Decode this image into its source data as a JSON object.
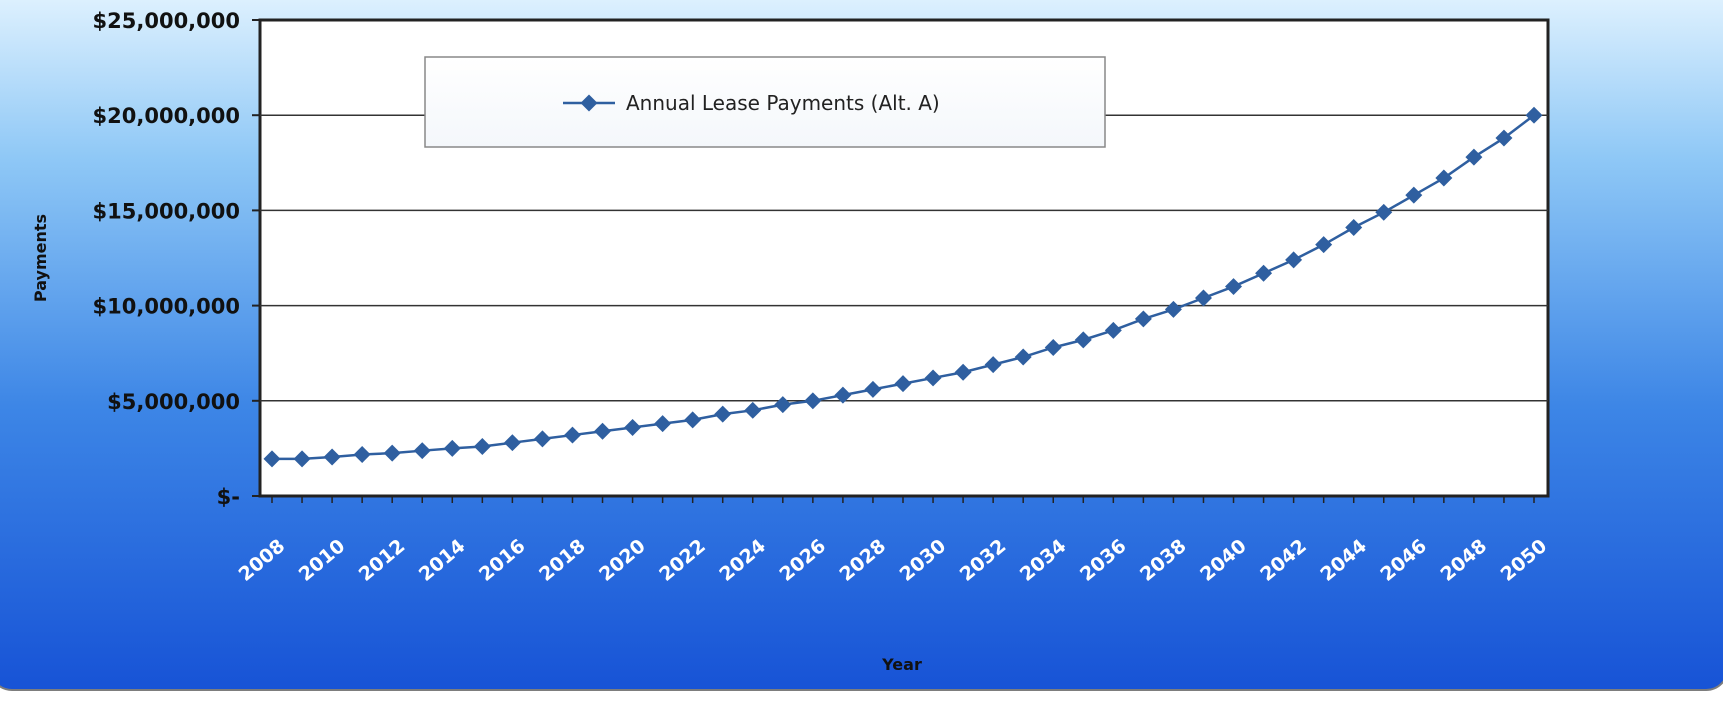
{
  "chart_data": {
    "type": "line",
    "title": "",
    "xlabel": "Year",
    "ylabel": "Payments",
    "x": [
      2008,
      2009,
      2010,
      2011,
      2012,
      2013,
      2014,
      2015,
      2016,
      2017,
      2018,
      2019,
      2020,
      2021,
      2022,
      2023,
      2024,
      2025,
      2026,
      2027,
      2028,
      2029,
      2030,
      2031,
      2032,
      2033,
      2034,
      2035,
      2036,
      2037,
      2038,
      2039,
      2040,
      2041,
      2042,
      2043,
      2044,
      2045,
      2046,
      2047,
      2048,
      2049,
      2050
    ],
    "x_tick_labels": [
      "2008",
      "2010",
      "2012",
      "2014",
      "2016",
      "2018",
      "2020",
      "2022",
      "2024",
      "2026",
      "2028",
      "2030",
      "2032",
      "2034",
      "2036",
      "2038",
      "2040",
      "2042",
      "2044",
      "2046",
      "2048",
      "2050"
    ],
    "ylim": [
      0,
      25000000
    ],
    "y_ticks": [
      0,
      5000000,
      10000000,
      15000000,
      20000000,
      25000000
    ],
    "y_tick_labels": [
      "$-",
      "$5,000,000",
      "$10,000,000",
      "$15,000,000",
      "$20,000,000",
      "$25,000,000"
    ],
    "grid": true,
    "legend_position": "top-center",
    "series": [
      {
        "name": "Annual Lease Payments (Alt. A)",
        "color": "#2f5fa0",
        "values": [
          1950000,
          1950000,
          2050000,
          2180000,
          2250000,
          2380000,
          2500000,
          2600000,
          2800000,
          3000000,
          3200000,
          3400000,
          3600000,
          3800000,
          4000000,
          4300000,
          4500000,
          4800000,
          5000000,
          5300000,
          5600000,
          5900000,
          6200000,
          6500000,
          6900000,
          7300000,
          7800000,
          8200000,
          8700000,
          9300000,
          9800000,
          10400000,
          11000000,
          11700000,
          12400000,
          13200000,
          14100000,
          14900000,
          15800000,
          16700000,
          17800000,
          18800000,
          20000000
        ]
      }
    ]
  }
}
